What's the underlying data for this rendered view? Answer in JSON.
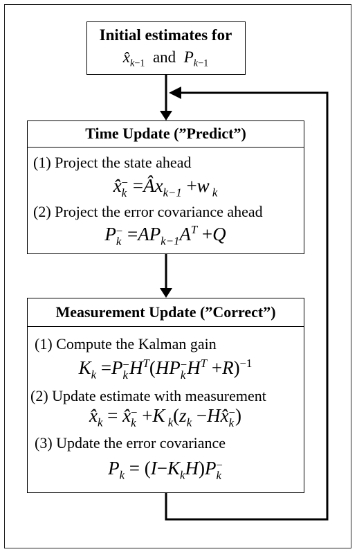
{
  "initial": {
    "title": "Initial estimates for",
    "and_word": "and"
  },
  "time_update": {
    "title": "Time Update (”Predict”)",
    "step1": "(1) Project the state ahead",
    "step2": "(2) Project the error covariance ahead"
  },
  "measurement_update": {
    "title": "Measurement Update (”Correct”)",
    "step1": "(1) Compute the Kalman gain",
    "step2": "(2) Update estimate with measurement",
    "step3": "(3) Update the error covariance"
  }
}
